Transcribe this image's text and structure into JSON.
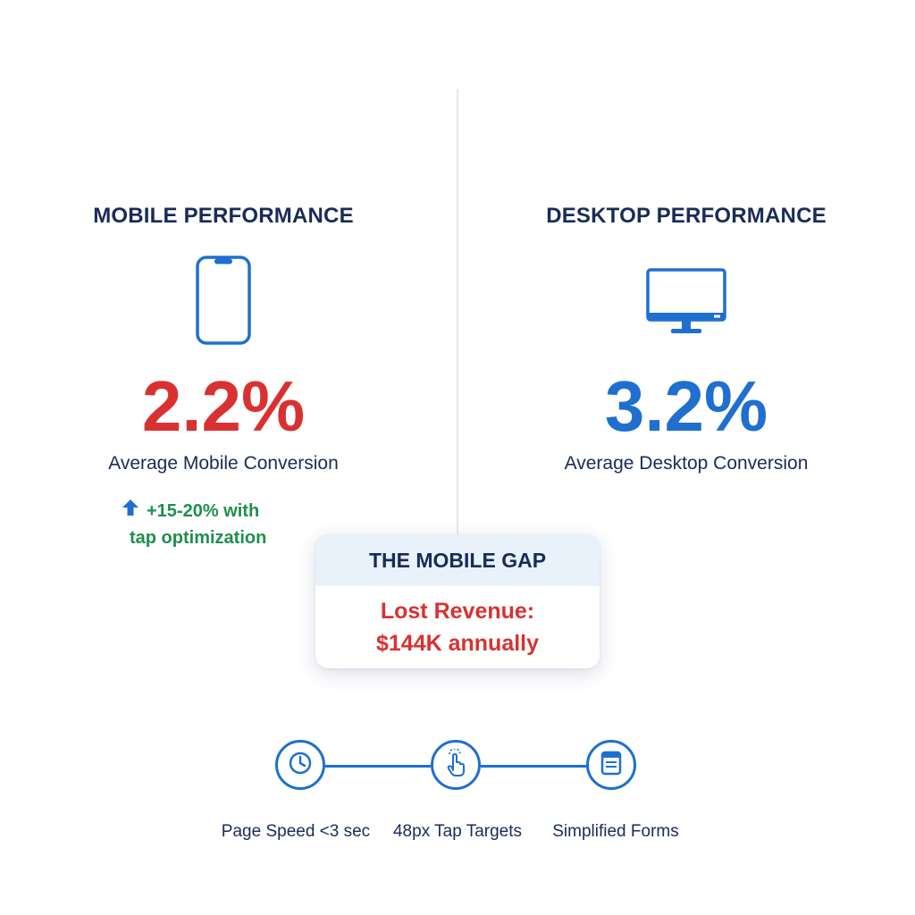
{
  "mobile": {
    "heading": "MOBILE PERFORMANCE",
    "icon": "smartphone-icon",
    "value": "2.2%",
    "label": "Average Mobile Conversion",
    "uplift_line1": "+15-20% with",
    "uplift_line2": "tap optimization",
    "value_color": "#d93131",
    "uplift_color": "#1e8f4e"
  },
  "desktop": {
    "heading": "DESKTOP PERFORMANCE",
    "icon": "desktop-monitor-icon",
    "value": "3.2%",
    "label": "Average Desktop Conversion",
    "value_color": "#1e6fd0"
  },
  "gap_card": {
    "title": "THE MOBILE GAP",
    "line1": "Lost Revenue:",
    "line2": "$144K annually"
  },
  "steps": [
    {
      "icon": "clock-icon",
      "label": "Page Speed <3 sec"
    },
    {
      "icon": "tap-hand-icon",
      "label": "48px Tap Targets"
    },
    {
      "icon": "form-document-icon",
      "label": "Simplified Forms"
    }
  ],
  "colors": {
    "navy_text": "#1a2b57",
    "accent_blue": "#1e6fd0",
    "alert_red": "#d93131",
    "positive_green": "#1e8f4e",
    "card_header_bg": "#e9f1fb"
  }
}
